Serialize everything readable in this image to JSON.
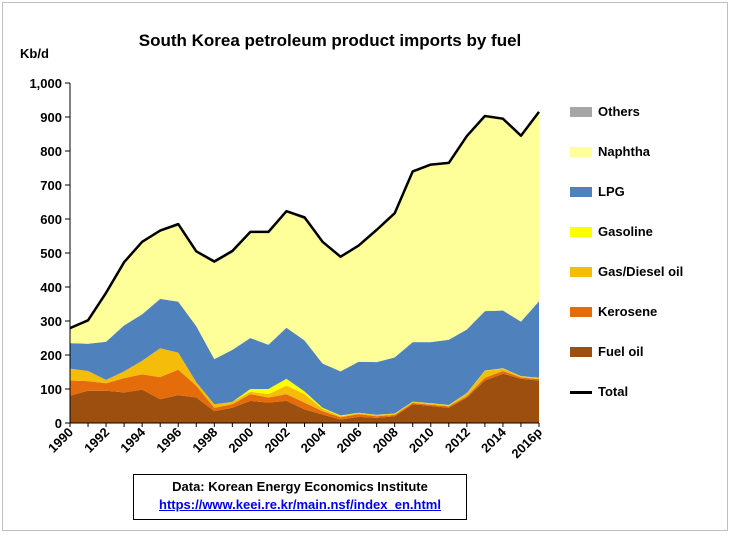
{
  "chart_data": {
    "type": "area",
    "title": "South Korea petroleum product imports by fuel",
    "ylabel": "Kb/d",
    "xlabel": "",
    "ylim": [
      0,
      1000
    ],
    "y_ticks": [
      "0",
      "100",
      "200",
      "300",
      "400",
      "500",
      "600",
      "700",
      "800",
      "900",
      "1,000"
    ],
    "x_tick_labels": [
      "1990",
      "1992",
      "1994",
      "1996",
      "1998",
      "2000",
      "2002",
      "2004",
      "2006",
      "2008",
      "2010",
      "2012",
      "2014",
      "2016p"
    ],
    "x": [
      "1990",
      "1991",
      "1992",
      "1993",
      "1994",
      "1995",
      "1996",
      "1997",
      "1998",
      "1999",
      "2000",
      "2001",
      "2002",
      "2003",
      "2004",
      "2005",
      "2006",
      "2007",
      "2008",
      "2009",
      "2010",
      "2011",
      "2012",
      "2013",
      "2014",
      "2015",
      "2016p"
    ],
    "grid": false,
    "legend_position": "right",
    "series": [
      {
        "name": "Fuel oil",
        "color": "#9c4f0e",
        "values": [
          80,
          95,
          95,
          90,
          98,
          70,
          82,
          75,
          35,
          45,
          65,
          60,
          65,
          40,
          25,
          10,
          18,
          15,
          20,
          55,
          50,
          45,
          75,
          125,
          145,
          130,
          125
        ]
      },
      {
        "name": "Kerosene",
        "color": "#e46c0a",
        "values": [
          45,
          28,
          22,
          42,
          45,
          65,
          75,
          35,
          10,
          10,
          20,
          15,
          20,
          20,
          10,
          7,
          8,
          5,
          4,
          4,
          4,
          4,
          4,
          8,
          8,
          4,
          4
        ]
      },
      {
        "name": "Gas/Diesel oil",
        "color": "#f5bd0a",
        "values": [
          35,
          30,
          10,
          20,
          40,
          85,
          50,
          10,
          10,
          7,
          7,
          10,
          25,
          25,
          7,
          3,
          3,
          3,
          3,
          3,
          3,
          3,
          8,
          20,
          7,
          3,
          3
        ]
      },
      {
        "name": "Gasoline",
        "color": "#ffff00",
        "values": [
          0,
          0,
          0,
          0,
          0,
          0,
          0,
          0,
          0,
          0,
          8,
          15,
          20,
          8,
          3,
          2,
          1,
          1,
          1,
          1,
          1,
          1,
          1,
          1,
          1,
          1,
          1
        ]
      },
      {
        "name": "LPG",
        "color": "#4f81bd",
        "values": [
          75,
          80,
          112,
          135,
          137,
          145,
          150,
          165,
          133,
          153,
          150,
          130,
          150,
          150,
          130,
          130,
          150,
          155,
          165,
          175,
          180,
          192,
          187,
          175,
          170,
          160,
          225
        ]
      },
      {
        "name": "Naphtha",
        "color": "#ffff99",
        "values": [
          42,
          67,
          141,
          183,
          210,
          198,
          222,
          216,
          282,
          285,
          310,
          330,
          340,
          355,
          355,
          335,
          340,
          387,
          422,
          500,
          520,
          518,
          567,
          572,
          562,
          545,
          555
        ]
      },
      {
        "name": "Others",
        "color": "#a6a6a6",
        "values": [
          2,
          2,
          3,
          3,
          3,
          3,
          6,
          4,
          5,
          6,
          2,
          2,
          3,
          7,
          3,
          2,
          2,
          2,
          2,
          2,
          2,
          2,
          2,
          2,
          2,
          2,
          2
        ]
      }
    ],
    "total": {
      "name": "Total",
      "color": "#000000",
      "values": [
        279,
        302,
        383,
        473,
        533,
        566,
        585,
        505,
        475,
        506,
        562,
        562,
        623,
        605,
        533,
        489,
        522,
        568,
        617,
        740,
        760,
        765,
        844,
        903,
        895,
        845,
        915
      ]
    }
  },
  "legend": [
    {
      "label": "Others",
      "kind": "swatch",
      "color": "#a6a6a6"
    },
    {
      "label": "Naphtha",
      "kind": "swatch",
      "color": "#ffff99"
    },
    {
      "label": "LPG",
      "kind": "swatch",
      "color": "#4f81bd"
    },
    {
      "label": "Gasoline",
      "kind": "swatch",
      "color": "#ffff00"
    },
    {
      "label": "Gas/Diesel oil",
      "kind": "swatch",
      "color": "#f5bd0a"
    },
    {
      "label": "Kerosene",
      "kind": "swatch",
      "color": "#e46c0a"
    },
    {
      "label": "Fuel oil",
      "kind": "swatch",
      "color": "#9c4f0e"
    },
    {
      "label": "Total",
      "kind": "line",
      "color": "#000000"
    }
  ],
  "source": {
    "text": "Data:  Korean Energy Economics Institute",
    "link": "https://www.keei.re.kr/main.nsf/index_en.html"
  }
}
